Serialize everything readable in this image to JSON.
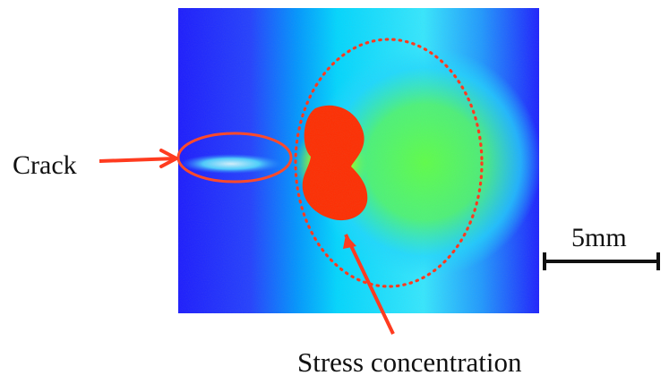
{
  "figure": {
    "crack_label": "Crack",
    "stress_label": "Stress concentration",
    "scale_label": "5mm",
    "colors": {
      "background": "#1818ff",
      "mid": "#00c8ff",
      "high": "#70ff40",
      "peak": "#ff2200",
      "annotation": "#ff3b1f",
      "scalebar": "#111111"
    }
  }
}
